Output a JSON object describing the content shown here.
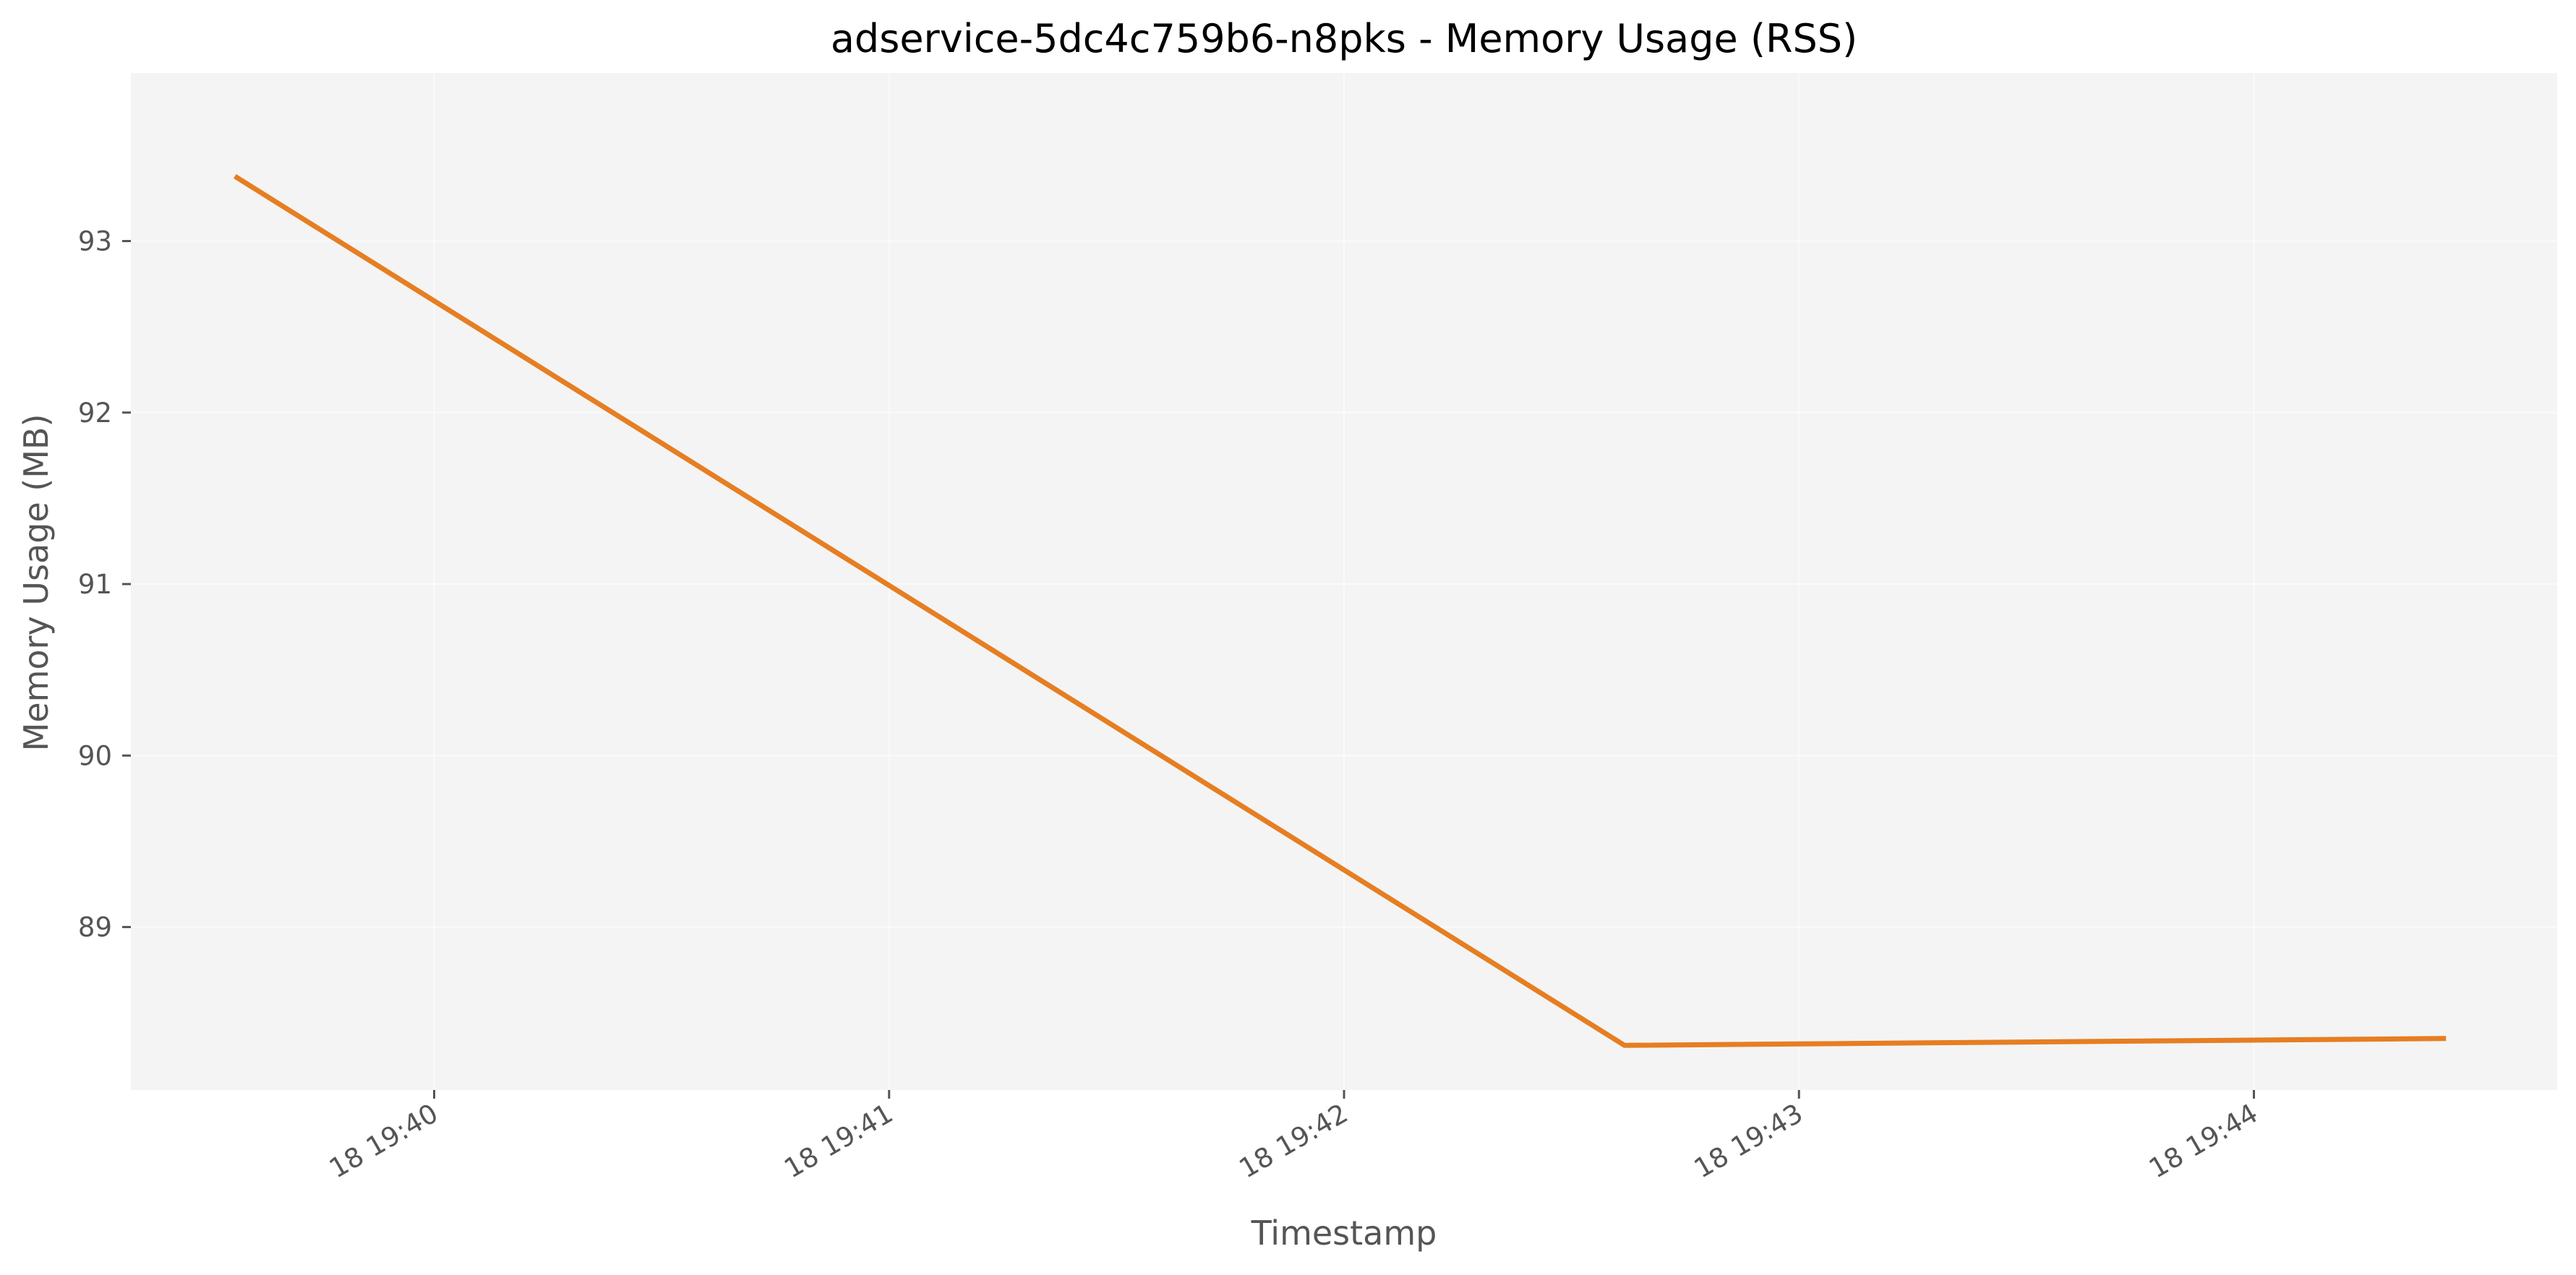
{
  "chart_data": {
    "type": "line",
    "title": "adservice-5dc4c759b6-n8pks - Memory Usage (RSS)",
    "xlabel": "Timestamp",
    "ylabel": "Memory Usage (MB)",
    "x_ticks": [
      "18 19:40",
      "18 19:41",
      "18 19:42",
      "18 19:43",
      "18 19:44"
    ],
    "y_ticks": [
      89,
      90,
      91,
      92,
      93
    ],
    "grid": true,
    "legend": "none",
    "series": [
      {
        "color": "#e67e22",
        "x": [
          "19:39:34",
          "19:42:37",
          "19:44:25"
        ],
        "y": [
          93.37,
          88.31,
          88.35
        ]
      }
    ],
    "xlim": [
      "19:39:20",
      "19:44:40"
    ],
    "ylim": [
      88.05,
      93.98
    ],
    "colors": {
      "plot_background": "#f4f4f4",
      "line": "#e67e22",
      "text": "#555555"
    }
  }
}
